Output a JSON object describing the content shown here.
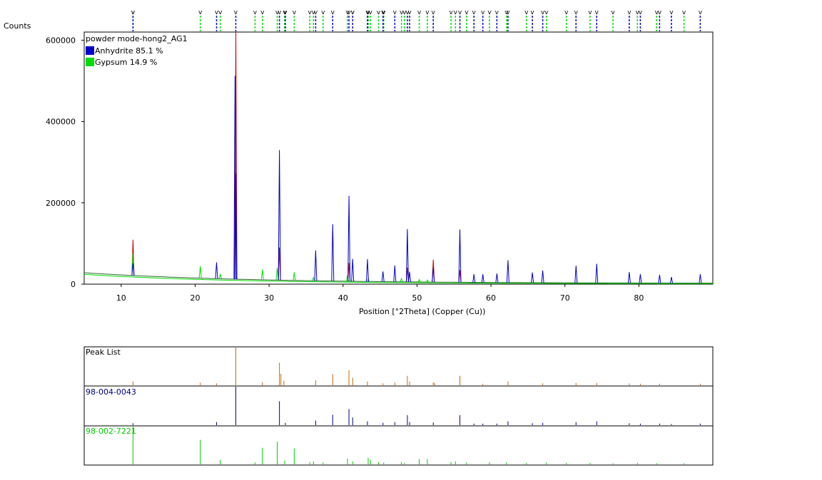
{
  "main_chart": {
    "ylabel": "Counts",
    "xlabel": "Position [°2Theta] (Copper (Cu))",
    "xlim": [
      5,
      90
    ],
    "ylim": [
      0,
      620000
    ],
    "x_ticks": [
      10,
      20,
      30,
      40,
      50,
      60,
      70,
      80
    ],
    "y_ticks": [
      0,
      200000,
      400000,
      600000
    ],
    "y_tick_labels": [
      "0",
      "200000",
      "400000",
      "600000"
    ],
    "sample_name": "powder mode-hong2_AG1",
    "legend": [
      {
        "label": "Anhydrite 85.1 %",
        "color": "#0000cc"
      },
      {
        "label": "Gypsum 14.9 %",
        "color": "#00dd00"
      }
    ],
    "colors": {
      "observed": "#cc0000",
      "anhydrite": "#0000cc",
      "gypsum": "#00dd00",
      "background": "#336633"
    }
  },
  "chart_data": {
    "type": "line",
    "title": "",
    "xlabel": "Position [°2Theta] (Copper (Cu))",
    "ylabel": "Counts",
    "xlim": [
      5,
      90
    ],
    "ylim": [
      0,
      620000
    ],
    "grid": false,
    "legend_position": "top-left",
    "series": [
      {
        "name": "Anhydrite 85.1 %",
        "peaks_x": [
          11.6,
          22.9,
          25.4,
          25.5,
          31.4,
          36.3,
          38.6,
          40.8,
          41.3,
          43.3,
          45.4,
          47.0,
          48.7,
          49.0,
          52.2,
          55.8,
          57.7,
          58.9,
          60.8,
          62.3,
          65.6,
          67.0,
          71.5,
          74.3,
          78.7,
          80.2,
          82.8,
          84.4,
          88.3
        ],
        "peaks_y": [
          30000,
          40000,
          500000,
          260000,
          320000,
          75000,
          140000,
          210000,
          55000,
          55000,
          25000,
          40000,
          130000,
          25000,
          35000,
          130000,
          20000,
          20000,
          22000,
          55000,
          25000,
          30000,
          42000,
          47000,
          27000,
          22000,
          20000,
          15000,
          22000
        ]
      },
      {
        "name": "Gypsum 14.9 %",
        "peaks_x": [
          11.6,
          20.7,
          23.4,
          29.1,
          31.1,
          33.4,
          36.0,
          40.6,
          43.4,
          47.9,
          50.3,
          51.4
        ],
        "peaks_y": [
          55000,
          30000,
          12000,
          25000,
          30000,
          20000,
          8000,
          15000,
          6000,
          8000,
          6000,
          5000
        ]
      },
      {
        "name": "observed",
        "peaks_x": [
          11.6,
          25.5,
          31.4,
          40.8,
          48.7,
          52.2,
          55.8
        ],
        "peaks_y": [
          88000,
          610000,
          80000,
          45000,
          35000,
          55000,
          30000
        ]
      }
    ]
  },
  "peak_list": {
    "title": "Peak List",
    "color": "#cc6600",
    "x": [
      11.6,
      20.7,
      22.9,
      25.5,
      29.1,
      31.4,
      31.6,
      32.0,
      36.3,
      38.6,
      40.8,
      41.3,
      43.3,
      45.4,
      47.0,
      48.7,
      49.0,
      52.2,
      52.4,
      55.8,
      58.9,
      62.3,
      67.0,
      71.5,
      74.3,
      78.7,
      80.2,
      82.8,
      88.3
    ],
    "y": [
      0.1,
      0.07,
      0.05,
      1.0,
      0.08,
      0.6,
      0.3,
      0.12,
      0.13,
      0.3,
      0.4,
      0.2,
      0.1,
      0.05,
      0.07,
      0.25,
      0.1,
      0.08,
      0.06,
      0.25,
      0.04,
      0.1,
      0.05,
      0.06,
      0.06,
      0.05,
      0.04,
      0.04,
      0.04
    ]
  },
  "ref_anhydrite": {
    "title": "98-004-0043",
    "color": "#000080",
    "x": [
      11.6,
      22.9,
      25.5,
      31.4,
      32.2,
      36.3,
      38.6,
      40.8,
      41.3,
      43.3,
      45.4,
      47.0,
      48.7,
      49.0,
      52.2,
      55.8,
      57.7,
      58.9,
      60.8,
      62.3,
      65.6,
      67.0,
      71.5,
      74.3,
      78.7,
      80.2,
      82.8,
      84.4,
      88.3
    ],
    "y": [
      0.05,
      0.08,
      1.0,
      0.62,
      0.06,
      0.12,
      0.27,
      0.42,
      0.2,
      0.1,
      0.06,
      0.08,
      0.26,
      0.08,
      0.07,
      0.26,
      0.04,
      0.04,
      0.04,
      0.1,
      0.05,
      0.06,
      0.08,
      0.1,
      0.05,
      0.04,
      0.04,
      0.03,
      0.04
    ]
  },
  "ref_gypsum": {
    "title": "98-002-7221",
    "color": "#00cc00",
    "x": [
      11.6,
      20.7,
      23.4,
      28.1,
      29.1,
      31.1,
      32.1,
      33.4,
      35.5,
      36.0,
      37.3,
      40.6,
      41.3,
      43.4,
      43.7,
      44.8,
      45.5,
      47.9,
      48.3,
      50.3,
      51.4,
      54.6,
      55.2,
      56.7,
      59.8,
      62.1,
      64.8,
      67.5,
      70.2,
      73.4,
      76.5,
      79.8,
      82.4,
      86.1
    ],
    "y": [
      1.0,
      0.65,
      0.12,
      0.05,
      0.44,
      0.6,
      0.1,
      0.42,
      0.06,
      0.08,
      0.05,
      0.15,
      0.08,
      0.17,
      0.12,
      0.06,
      0.05,
      0.06,
      0.04,
      0.14,
      0.14,
      0.06,
      0.08,
      0.05,
      0.06,
      0.05,
      0.04,
      0.05,
      0.04,
      0.04,
      0.03,
      0.04,
      0.03,
      0.03
    ]
  }
}
